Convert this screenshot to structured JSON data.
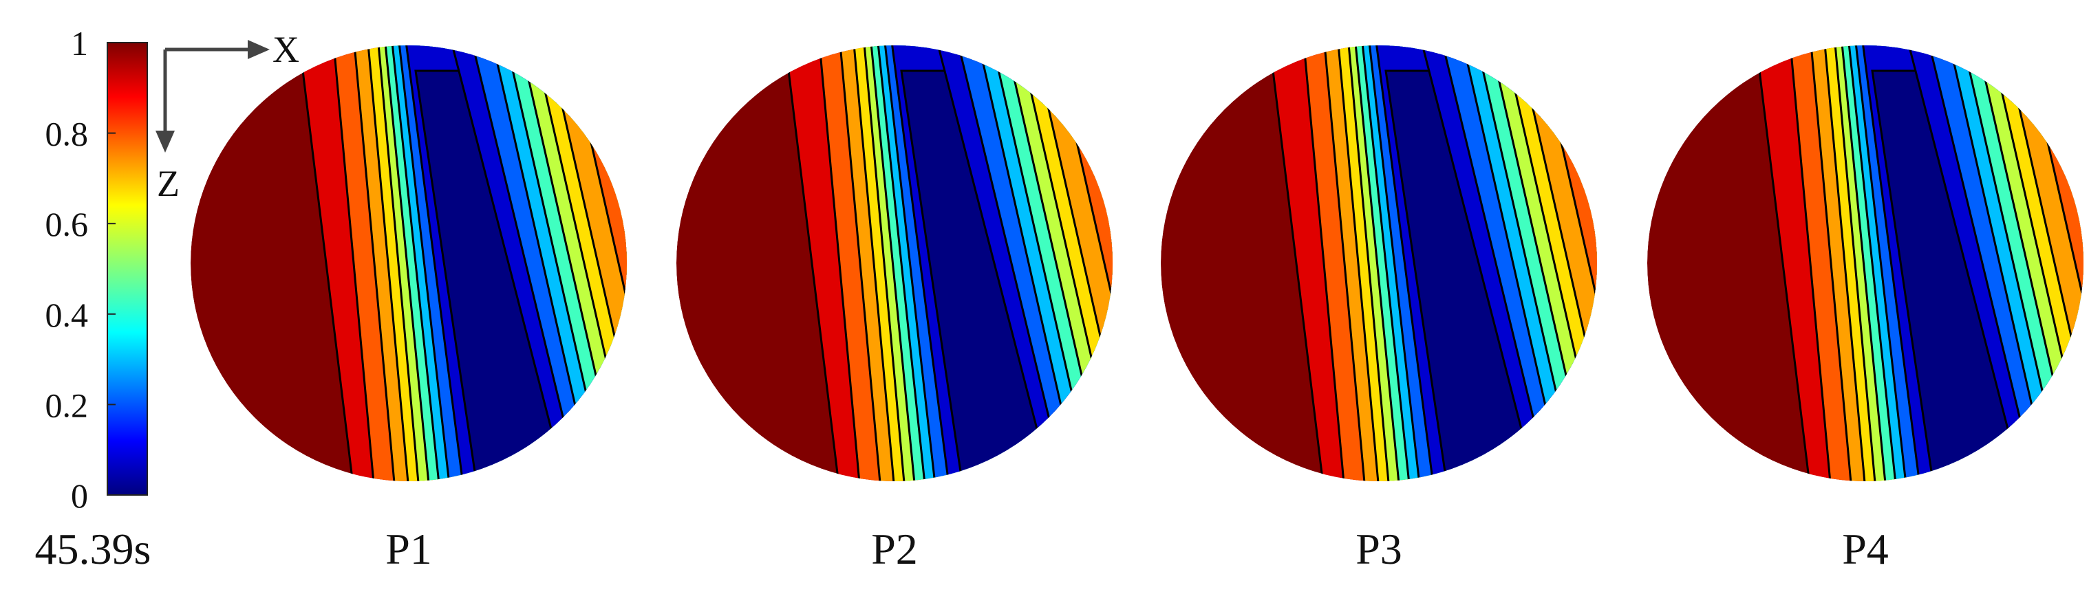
{
  "colorbar": {
    "range": [
      0,
      1
    ],
    "ticks": [
      0,
      0.2,
      0.4,
      0.6,
      0.8,
      1
    ]
  },
  "time": "45.39s",
  "axes": {
    "x": "X",
    "z": "Z"
  },
  "panels": [
    "P1",
    "P2",
    "P3",
    "P4"
  ]
}
